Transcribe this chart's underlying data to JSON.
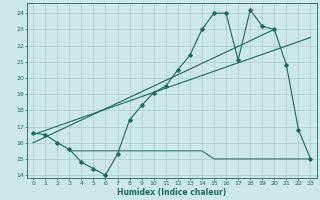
{
  "xlabel": "Humidex (Indice chaleur)",
  "bg_color": "#cce8e8",
  "line_color": "#1a6b5a",
  "grid_color": "#aacccc",
  "xlim": [
    -0.5,
    23.5
  ],
  "ylim": [
    13.8,
    24.6
  ],
  "yticks": [
    14,
    15,
    16,
    17,
    18,
    19,
    20,
    21,
    22,
    23,
    24
  ],
  "xticks": [
    0,
    1,
    2,
    3,
    4,
    5,
    6,
    7,
    8,
    9,
    10,
    11,
    12,
    13,
    14,
    15,
    16,
    17,
    18,
    19,
    20,
    21,
    22,
    23
  ],
  "main_x": [
    0,
    1,
    2,
    3,
    4,
    5,
    6,
    7,
    8,
    9,
    10,
    11,
    12,
    13,
    14,
    15,
    16,
    17,
    18,
    19,
    20,
    21,
    22,
    23
  ],
  "main_y": [
    16.6,
    16.5,
    16.0,
    15.6,
    14.8,
    14.4,
    14.0,
    15.3,
    17.4,
    18.3,
    19.1,
    19.5,
    20.5,
    21.4,
    23.0,
    24.0,
    24.0,
    21.1,
    24.2,
    23.2,
    23.0,
    20.8,
    16.8,
    15.0
  ],
  "trend1_x": [
    0,
    23
  ],
  "trend1_y": [
    16.5,
    22.5
  ],
  "trend2_x": [
    0,
    20
  ],
  "trend2_y": [
    16.0,
    23.0
  ],
  "flat_x": [
    3,
    4,
    5,
    6,
    7,
    8,
    9,
    10,
    11,
    12,
    13,
    14,
    15,
    16,
    17,
    18,
    19,
    20,
    21,
    22,
    23
  ],
  "flat_y": [
    15.5,
    15.5,
    15.5,
    15.5,
    15.5,
    15.5,
    15.5,
    15.5,
    15.5,
    15.5,
    15.5,
    15.5,
    15.0,
    15.0,
    15.0,
    15.0,
    15.0,
    15.0,
    15.0,
    15.0,
    15.0
  ]
}
